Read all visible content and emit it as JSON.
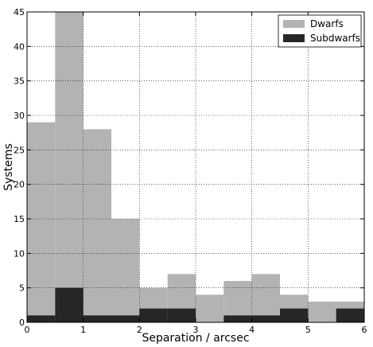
{
  "chart_data": {
    "type": "bar",
    "xlabel": "Separation / arcsec",
    "ylabel": "Systems",
    "xlim": [
      0,
      6
    ],
    "ylim": [
      0,
      45
    ],
    "xticks": [
      "0",
      "1",
      "2",
      "3",
      "4",
      "5",
      "6"
    ],
    "yticks": [
      "0",
      "5",
      "10",
      "15",
      "20",
      "25",
      "30",
      "35",
      "40",
      "45"
    ],
    "grid": true,
    "legend_position": "top-right",
    "bin_edges": [
      0,
      0.5,
      1.0,
      1.5,
      2.0,
      2.5,
      3.0,
      3.5,
      4.0,
      4.5,
      5.0,
      5.5,
      6.0
    ],
    "series": [
      {
        "name": "Dwarfs",
        "color": "#b3b3b3",
        "values": [
          29,
          45,
          28,
          15,
          5,
          7,
          4,
          6,
          7,
          4,
          3,
          3
        ]
      },
      {
        "name": "Subdwarfs",
        "color": "#262626",
        "values": [
          1,
          5,
          1,
          1,
          2,
          2,
          0,
          1,
          1,
          2,
          0,
          2
        ]
      }
    ]
  }
}
